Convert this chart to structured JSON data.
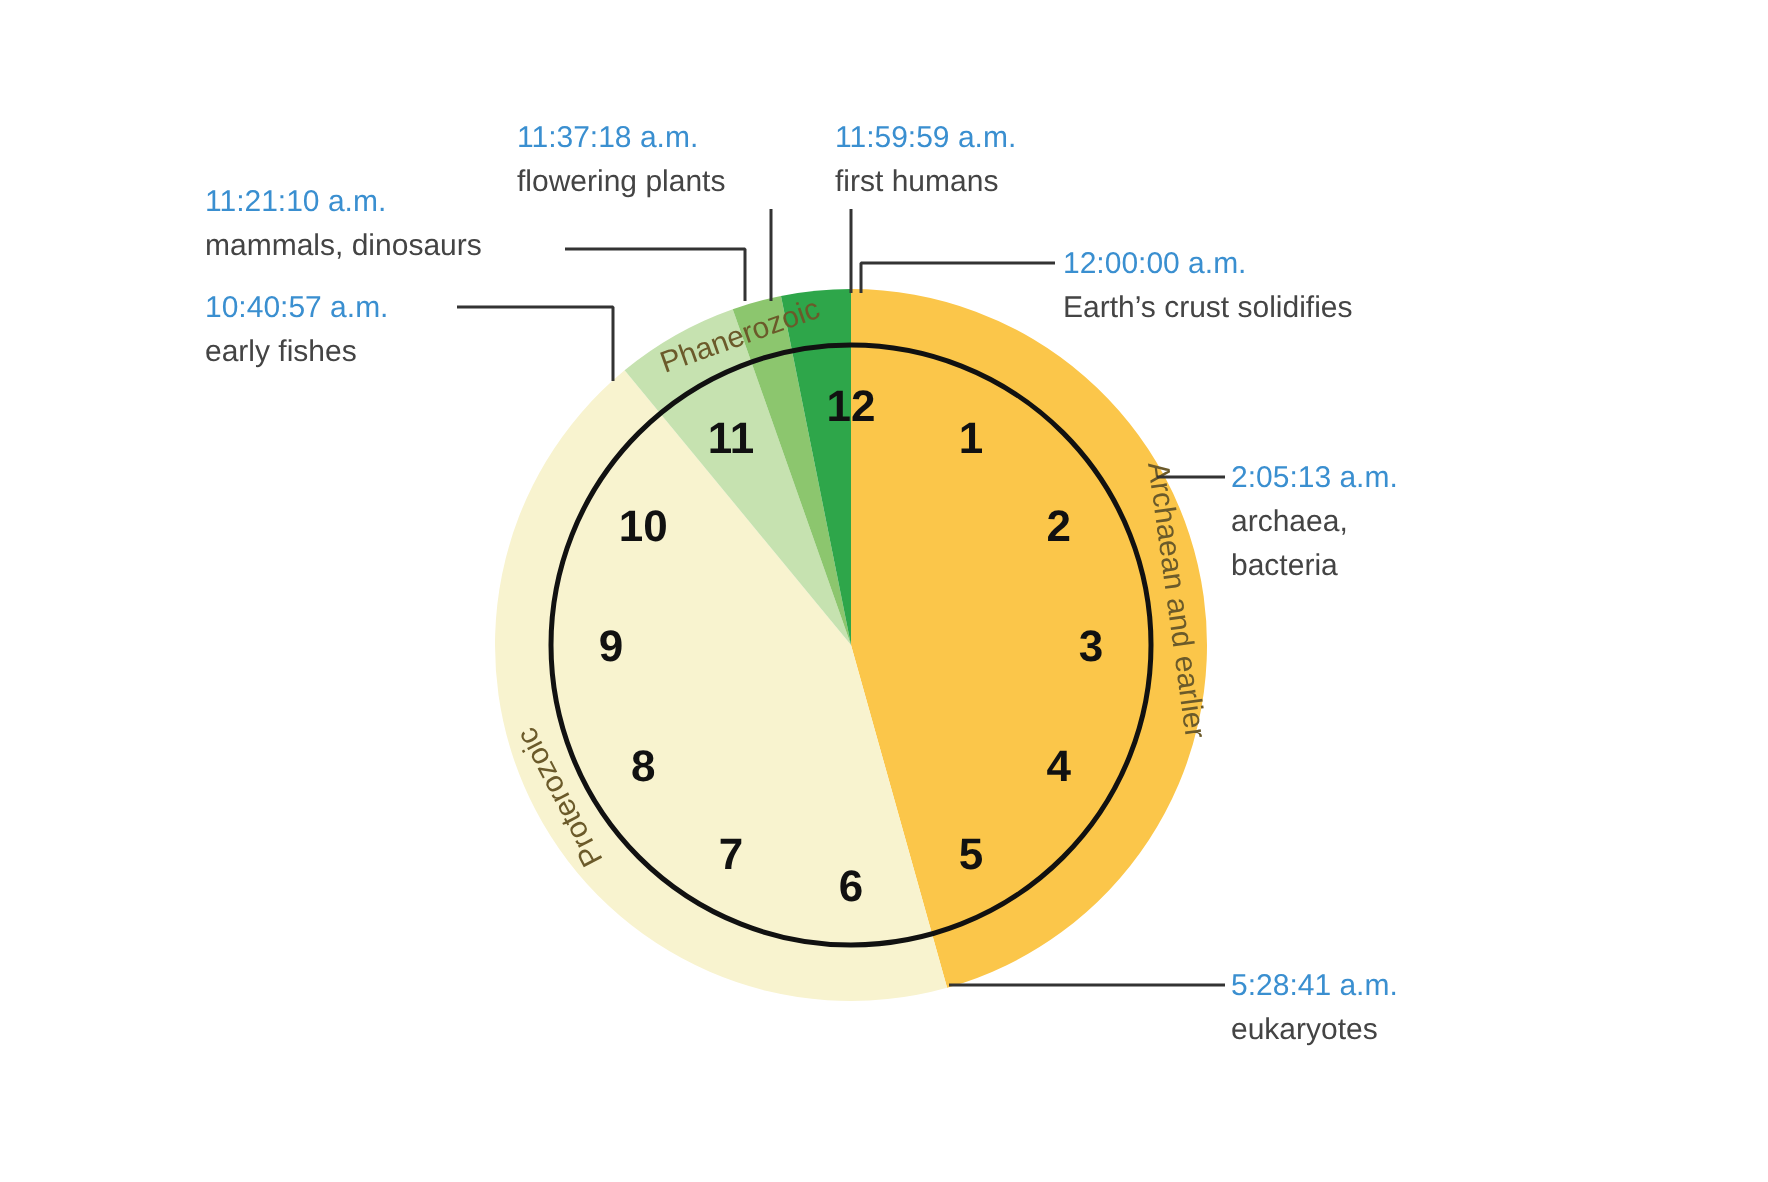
{
  "chart_data": {
    "type": "pie",
    "categories": [
      "Archaean and earlier",
      "Proterozoic",
      "Phanerozoic",
      null,
      null
    ],
    "values": [
      45.65,
      43.38,
      5.58,
      2.24,
      3.15
    ],
    "colors": [
      "#fbc64a",
      "#f8f3cf",
      "#c6e2b0",
      "#8cc66e",
      "#2ea64a"
    ],
    "annotations": [
      "12",
      "1",
      "2",
      "3",
      "4",
      "5",
      "6",
      "7",
      "8",
      "9",
      "10",
      "11",
      "11:37:18 a.m.\nflowering plants",
      "11:59:59 a.m.\nfirst humans",
      "11:21:10 a.m.\nmammals, dinosaurs",
      "10:40:57 a.m.\nearly fishes",
      "12:00:00 a.m.\nEarth’s crust solidifies",
      "2:05:13 a.m.\narchaea,\nbacteria",
      "5:28:41 a.m.\neukaryotes"
    ]
  }
}
